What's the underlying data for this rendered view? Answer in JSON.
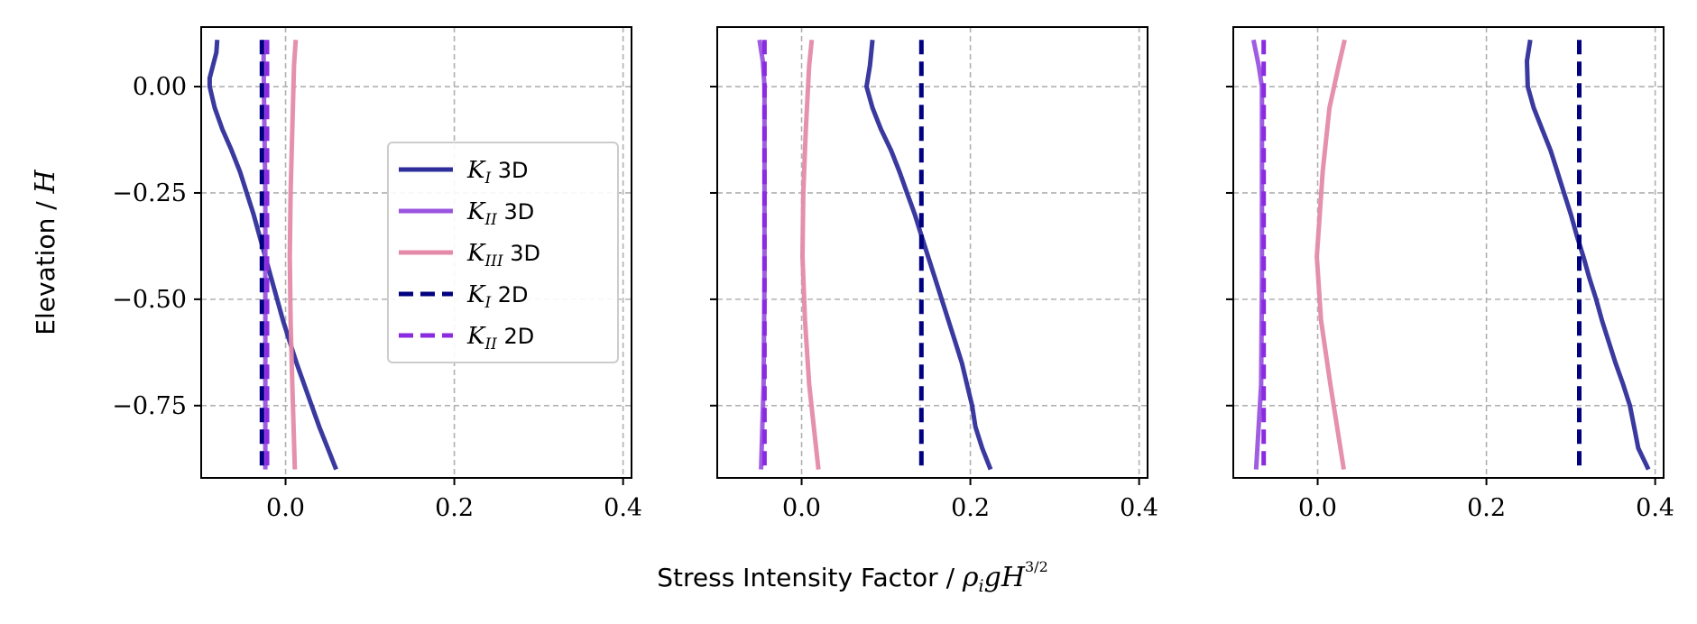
{
  "chart_data": {
    "type": "line",
    "xlabel_text": "Stress Intensity Factor / ",
    "xlabel_math": "ρ",
    "xlabel_math_sub": "i",
    "xlabel_math_rest": "gH",
    "xlabel_exp": "3/2",
    "ylabel_text": "Elevation / ",
    "ylabel_math": "H",
    "xlim": [
      -0.1,
      0.41
    ],
    "ylim": [
      -0.92,
      0.14
    ],
    "xticks": [
      0.0,
      0.2,
      0.4
    ],
    "xtick_labels": [
      "0.0",
      "0.2",
      "0.4"
    ],
    "yticks": [
      0.0,
      -0.25,
      -0.5,
      -0.75
    ],
    "ytick_labels": [
      "0.00",
      "−0.25",
      "−0.50",
      "−0.75"
    ],
    "grid": true,
    "legend_placement": "center-right",
    "colors": {
      "KI_3D": "#2e2e9a",
      "KII_3D": "#9a55df",
      "KIII_3D": "#e48aa8",
      "KI_2D": "#000080",
      "KII_2D": "#8a2be2"
    },
    "legend": [
      {
        "key": "KI_3D",
        "symbol": "K",
        "sub": "I",
        "suffix": " 3D",
        "dashed": false
      },
      {
        "key": "KII_3D",
        "symbol": "K",
        "sub": "II",
        "suffix": " 3D",
        "dashed": false
      },
      {
        "key": "KIII_3D",
        "symbol": "K",
        "sub": "III",
        "suffix": " 3D",
        "dashed": false
      },
      {
        "key": "KI_2D",
        "symbol": "K",
        "sub": "I",
        "suffix": " 2D",
        "dashed": true
      },
      {
        "key": "KII_2D",
        "symbol": "K",
        "sub": "II",
        "suffix": " 2D",
        "dashed": true
      }
    ],
    "panels": [
      {
        "series": [
          {
            "key": "KI_3D",
            "dashed": false,
            "points": [
              [
                -0.081,
                0.11
              ],
              [
                -0.082,
                0.08
              ],
              [
                -0.086,
                0.05
              ],
              [
                -0.09,
                0.02
              ],
              [
                -0.09,
                0.0
              ],
              [
                -0.084,
                -0.05
              ],
              [
                -0.075,
                -0.1
              ],
              [
                -0.064,
                -0.15
              ],
              [
                -0.054,
                -0.2
              ],
              [
                -0.046,
                -0.25
              ],
              [
                -0.038,
                -0.3
              ],
              [
                -0.031,
                -0.35
              ],
              [
                -0.024,
                -0.4
              ],
              [
                -0.017,
                -0.45
              ],
              [
                -0.01,
                -0.5
              ],
              [
                -0.003,
                -0.55
              ],
              [
                0.005,
                -0.6
              ],
              [
                0.013,
                -0.65
              ],
              [
                0.022,
                -0.7
              ],
              [
                0.031,
                -0.75
              ],
              [
                0.04,
                -0.8
              ],
              [
                0.05,
                -0.85
              ],
              [
                0.06,
                -0.9
              ]
            ]
          },
          {
            "key": "KII_3D",
            "dashed": false,
            "points": [
              [
                -0.026,
                0.11
              ],
              [
                -0.026,
                0.05
              ],
              [
                -0.025,
                -0.1
              ],
              [
                -0.024,
                -0.25
              ],
              [
                -0.024,
                -0.4
              ],
              [
                -0.024,
                -0.55
              ],
              [
                -0.024,
                -0.7
              ],
              [
                -0.024,
                -0.9
              ]
            ]
          },
          {
            "key": "KIII_3D",
            "dashed": false,
            "points": [
              [
                0.012,
                0.11
              ],
              [
                0.01,
                0.05
              ],
              [
                0.008,
                -0.1
              ],
              [
                0.006,
                -0.25
              ],
              [
                0.005,
                -0.4
              ],
              [
                0.006,
                -0.55
              ],
              [
                0.008,
                -0.7
              ],
              [
                0.011,
                -0.9
              ]
            ]
          },
          {
            "key": "KI_2D",
            "dashed": true,
            "points": [
              [
                -0.028,
                0.11
              ],
              [
                -0.028,
                -0.9
              ]
            ]
          },
          {
            "key": "KII_2D",
            "dashed": true,
            "points": [
              [
                -0.022,
                0.11
              ],
              [
                -0.022,
                -0.9
              ]
            ]
          }
        ]
      },
      {
        "series": [
          {
            "key": "KI_3D",
            "dashed": false,
            "points": [
              [
                0.084,
                0.11
              ],
              [
                0.081,
                0.05
              ],
              [
                0.077,
                0.0
              ],
              [
                0.084,
                -0.05
              ],
              [
                0.094,
                -0.1
              ],
              [
                0.106,
                -0.15
              ],
              [
                0.116,
                -0.2
              ],
              [
                0.125,
                -0.25
              ],
              [
                0.134,
                -0.3
              ],
              [
                0.142,
                -0.35
              ],
              [
                0.15,
                -0.4
              ],
              [
                0.158,
                -0.45
              ],
              [
                0.166,
                -0.5
              ],
              [
                0.174,
                -0.55
              ],
              [
                0.182,
                -0.6
              ],
              [
                0.19,
                -0.65
              ],
              [
                0.196,
                -0.7
              ],
              [
                0.202,
                -0.75
              ],
              [
                0.206,
                -0.8
              ],
              [
                0.214,
                -0.85
              ],
              [
                0.224,
                -0.9
              ]
            ]
          },
          {
            "key": "KII_3D",
            "dashed": false,
            "points": [
              [
                -0.05,
                0.11
              ],
              [
                -0.046,
                0.06
              ],
              [
                -0.044,
                0.0
              ],
              [
                -0.044,
                -0.2
              ],
              [
                -0.044,
                -0.45
              ],
              [
                -0.045,
                -0.7
              ],
              [
                -0.048,
                -0.9
              ]
            ]
          },
          {
            "key": "KIII_3D",
            "dashed": false,
            "points": [
              [
                0.012,
                0.11
              ],
              [
                0.009,
                0.05
              ],
              [
                0.005,
                -0.1
              ],
              [
                0.002,
                -0.25
              ],
              [
                0.001,
                -0.4
              ],
              [
                0.004,
                -0.55
              ],
              [
                0.009,
                -0.7
              ],
              [
                0.02,
                -0.9
              ]
            ]
          },
          {
            "key": "KI_2D",
            "dashed": true,
            "points": [
              [
                0.142,
                0.11
              ],
              [
                0.142,
                -0.9
              ]
            ]
          },
          {
            "key": "KII_2D",
            "dashed": true,
            "points": [
              [
                -0.044,
                0.11
              ],
              [
                -0.044,
                -0.9
              ]
            ]
          }
        ]
      },
      {
        "series": [
          {
            "key": "KI_3D",
            "dashed": false,
            "points": [
              [
                0.252,
                0.11
              ],
              [
                0.248,
                0.06
              ],
              [
                0.249,
                0.0
              ],
              [
                0.256,
                -0.05
              ],
              [
                0.266,
                -0.1
              ],
              [
                0.276,
                -0.15
              ],
              [
                0.284,
                -0.2
              ],
              [
                0.292,
                -0.25
              ],
              [
                0.3,
                -0.3
              ],
              [
                0.307,
                -0.35
              ],
              [
                0.315,
                -0.4
              ],
              [
                0.322,
                -0.45
              ],
              [
                0.33,
                -0.5
              ],
              [
                0.337,
                -0.55
              ],
              [
                0.345,
                -0.6
              ],
              [
                0.353,
                -0.65
              ],
              [
                0.362,
                -0.7
              ],
              [
                0.37,
                -0.75
              ],
              [
                0.375,
                -0.8
              ],
              [
                0.38,
                -0.85
              ],
              [
                0.392,
                -0.9
              ]
            ]
          },
          {
            "key": "KII_3D",
            "dashed": false,
            "points": [
              [
                -0.076,
                0.11
              ],
              [
                -0.07,
                0.05
              ],
              [
                -0.066,
                0.0
              ],
              [
                -0.066,
                -0.2
              ],
              [
                -0.066,
                -0.45
              ],
              [
                -0.067,
                -0.7
              ],
              [
                -0.073,
                -0.9
              ]
            ]
          },
          {
            "key": "KIII_3D",
            "dashed": false,
            "points": [
              [
                0.032,
                0.11
              ],
              [
                0.025,
                0.05
              ],
              [
                0.014,
                -0.05
              ],
              [
                0.006,
                -0.2
              ],
              [
                -0.001,
                -0.4
              ],
              [
                0.004,
                -0.55
              ],
              [
                0.015,
                -0.7
              ],
              [
                0.031,
                -0.9
              ]
            ]
          },
          {
            "key": "KI_2D",
            "dashed": true,
            "points": [
              [
                0.31,
                0.11
              ],
              [
                0.31,
                -0.9
              ]
            ]
          },
          {
            "key": "KII_2D",
            "dashed": true,
            "points": [
              [
                -0.064,
                0.11
              ],
              [
                -0.064,
                -0.9
              ]
            ]
          }
        ]
      }
    ]
  }
}
